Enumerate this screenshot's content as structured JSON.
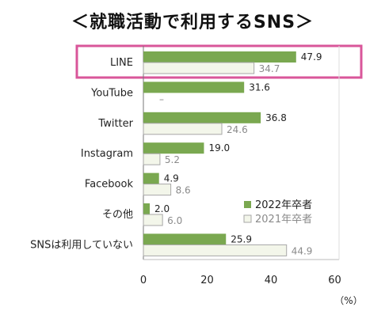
{
  "chart_data": {
    "type": "bar",
    "orientation": "horizontal",
    "title": "＜就職活動で利用するSNS＞",
    "categories": [
      "LINE",
      "YouTube",
      "Twitter",
      "Instagram",
      "Facebook",
      "その他",
      "SNSは利用していない"
    ],
    "series": [
      {
        "name": "2022年卒者",
        "values": [
          47.9,
          31.6,
          36.8,
          19.0,
          4.9,
          2.0,
          25.9
        ],
        "labels": [
          "47.9",
          "31.6",
          "36.8",
          "19.0",
          "4.9",
          "2.0",
          "25.9"
        ],
        "color": "#7aa850"
      },
      {
        "name": "2021年卒者",
        "values": [
          34.7,
          null,
          24.6,
          5.2,
          8.6,
          6.0,
          44.9
        ],
        "labels": [
          "34.7",
          "–",
          "24.6",
          "5.2",
          "8.6",
          "6.0",
          "44.9"
        ],
        "color": "#f3f6ea"
      }
    ],
    "xlim": [
      0,
      60
    ],
    "xticks": [
      "0",
      "20",
      "40",
      "60"
    ],
    "unit": "（%）",
    "legend_position": "right",
    "grid": false,
    "highlight_category": "LINE",
    "highlight_color": "#d9569a"
  }
}
